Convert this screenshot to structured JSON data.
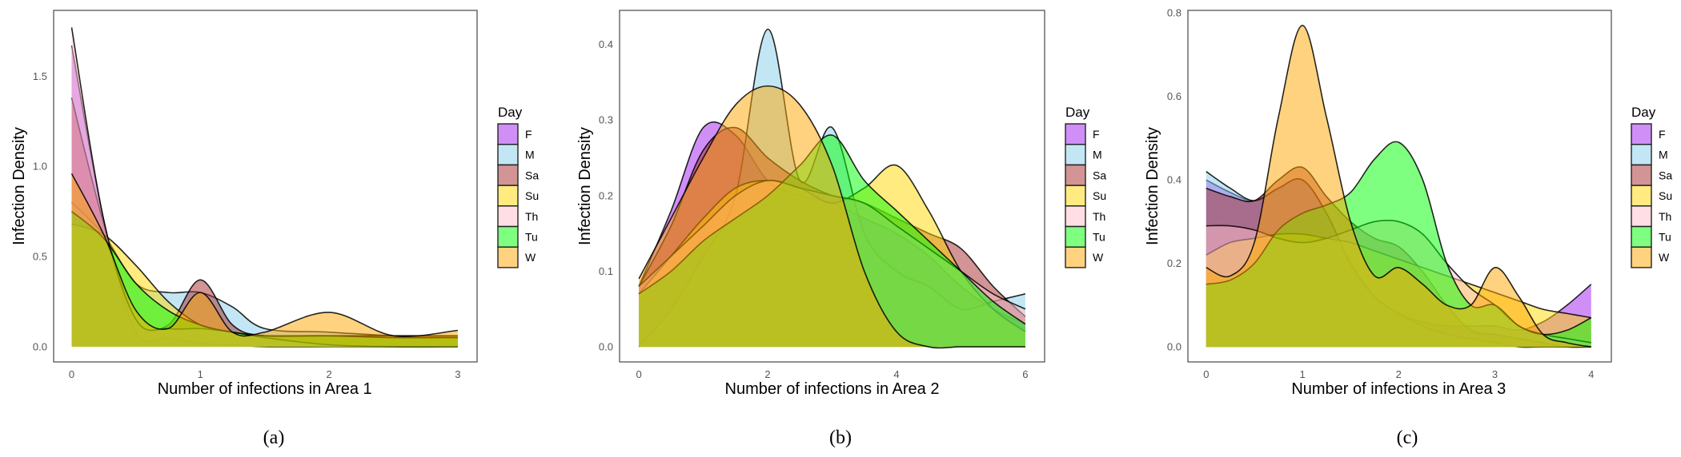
{
  "chart_data": [
    {
      "type": "area",
      "caption": "(a)",
      "xlabel": "Number of infections in Area 1",
      "ylabel": "Infection Density",
      "xlim": [
        -0.14,
        3.15
      ],
      "ylim": [
        -0.085,
        1.865
      ],
      "xticks": [
        0,
        1,
        2,
        3
      ],
      "xtick_labels": [
        "0",
        "1",
        "2",
        "3"
      ],
      "yticks": [
        0,
        0.5,
        1,
        1.5
      ],
      "ytick_labels": [
        "0.0",
        "0.5",
        "1.0",
        "1.5"
      ],
      "grid": false,
      "legend": {
        "title": "Day",
        "placement": "right"
      },
      "x": [
        0,
        0.25,
        0.5,
        0.75,
        1,
        1.25,
        1.5,
        2,
        2.5,
        3
      ],
      "series": [
        {
          "name": "F",
          "values": [
            1.67,
            0.7,
            0.08,
            0.05,
            0.02,
            0.01,
            0.0,
            0.0,
            0.0,
            0.0
          ]
        },
        {
          "name": "M",
          "values": [
            0.8,
            0.62,
            0.35,
            0.3,
            0.3,
            0.22,
            0.1,
            0.08,
            0.06,
            0.05
          ]
        },
        {
          "name": "Sa",
          "values": [
            1.38,
            0.68,
            0.15,
            0.12,
            0.37,
            0.12,
            0.06,
            0.06,
            0.06,
            0.06
          ]
        },
        {
          "name": "Su",
          "values": [
            0.68,
            0.62,
            0.45,
            0.25,
            0.12,
            0.08,
            0.06,
            0.06,
            0.06,
            0.06
          ]
        },
        {
          "name": "Th",
          "values": [
            1.77,
            0.7,
            0.15,
            0.1,
            0.1,
            0.08,
            0.05,
            0.01,
            0.0,
            0.0
          ]
        },
        {
          "name": "Tu",
          "values": [
            0.75,
            0.6,
            0.35,
            0.2,
            0.12,
            0.08,
            0.06,
            0.06,
            0.05,
            0.05
          ]
        },
        {
          "name": "W",
          "values": [
            0.96,
            0.62,
            0.2,
            0.1,
            0.3,
            0.08,
            0.08,
            0.19,
            0.06,
            0.09
          ]
        }
      ]
    },
    {
      "type": "area",
      "caption": "(b)",
      "xlabel": "Number of infections in Area 2",
      "ylabel": "Infection Density",
      "xlim": [
        -0.3,
        6.3
      ],
      "ylim": [
        -0.02,
        0.445
      ],
      "xticks": [
        0,
        2,
        4,
        6
      ],
      "xtick_labels": [
        "0",
        "2",
        "4",
        "6"
      ],
      "yticks": [
        0,
        0.1,
        0.2,
        0.3,
        0.4
      ],
      "ytick_labels": [
        "0.0",
        "0.1",
        "0.2",
        "0.3",
        "0.4"
      ],
      "grid": false,
      "legend": {
        "title": "Day",
        "placement": "right"
      },
      "x": [
        0,
        0.5,
        1,
        1.5,
        2,
        2.5,
        3,
        3.5,
        4,
        4.5,
        5,
        5.5,
        6
      ],
      "series": [
        {
          "name": "F",
          "values": [
            0.08,
            0.18,
            0.29,
            0.28,
            0.22,
            0.2,
            0.19,
            0.17,
            0.15,
            0.12,
            0.08,
            0.05,
            0.03
          ]
        },
        {
          "name": "M",
          "values": [
            0.0,
            0.05,
            0.12,
            0.2,
            0.42,
            0.22,
            0.29,
            0.15,
            0.1,
            0.08,
            0.05,
            0.06,
            0.07
          ]
        },
        {
          "name": "Sa",
          "values": [
            0.08,
            0.16,
            0.26,
            0.29,
            0.25,
            0.22,
            0.2,
            0.19,
            0.17,
            0.15,
            0.13,
            0.08,
            0.04
          ]
        },
        {
          "name": "Su",
          "values": [
            0.07,
            0.12,
            0.17,
            0.21,
            0.22,
            0.21,
            0.19,
            0.21,
            0.24,
            0.18,
            0.1,
            0.05,
            0.02
          ]
        },
        {
          "name": "Th",
          "values": [
            0.08,
            0.12,
            0.16,
            0.2,
            0.22,
            0.21,
            0.2,
            0.19,
            0.16,
            0.13,
            0.1,
            0.07,
            0.05
          ]
        },
        {
          "name": "Tu",
          "values": [
            0.07,
            0.1,
            0.14,
            0.17,
            0.2,
            0.24,
            0.28,
            0.22,
            0.18,
            0.14,
            0.1,
            0.06,
            0.03
          ]
        },
        {
          "name": "W",
          "values": [
            0.09,
            0.17,
            0.25,
            0.32,
            0.345,
            0.32,
            0.24,
            0.1,
            0.02,
            0.0,
            0.0,
            0.0,
            0.0
          ]
        }
      ]
    },
    {
      "type": "area",
      "caption": "(c)",
      "xlabel": "Number of infections in Area 3",
      "ylabel": "Infection Density",
      "xlim": [
        -0.19,
        4.21
      ],
      "ylim": [
        -0.036,
        0.806
      ],
      "xticks": [
        0,
        1,
        2,
        3,
        4
      ],
      "xtick_labels": [
        "0",
        "1",
        "2",
        "3",
        "4"
      ],
      "yticks": [
        0,
        0.2,
        0.4,
        0.6,
        0.8
      ],
      "ytick_labels": [
        "0.0",
        "0.2",
        "0.4",
        "0.6",
        "0.8"
      ],
      "grid": false,
      "legend": {
        "title": "Day",
        "placement": "right"
      },
      "x": [
        0,
        0.25,
        0.5,
        0.75,
        1,
        1.25,
        1.5,
        1.75,
        2,
        2.25,
        2.5,
        2.75,
        3,
        3.25,
        3.5,
        3.75,
        4
      ],
      "series": [
        {
          "name": "F",
          "values": [
            0.4,
            0.37,
            0.35,
            0.38,
            0.4,
            0.32,
            0.2,
            0.12,
            0.08,
            0.06,
            0.05,
            0.05,
            0.05,
            0.04,
            0.06,
            0.1,
            0.15
          ]
        },
        {
          "name": "M",
          "values": [
            0.42,
            0.38,
            0.35,
            0.38,
            0.4,
            0.32,
            0.2,
            0.12,
            0.08,
            0.05,
            0.03,
            0.02,
            0.01,
            0.0,
            0.0,
            0.0,
            0.0
          ]
        },
        {
          "name": "Sa",
          "values": [
            0.38,
            0.36,
            0.35,
            0.4,
            0.43,
            0.36,
            0.3,
            0.26,
            0.24,
            0.18,
            0.1,
            0.04,
            0.03,
            0.02,
            0.01,
            0.0,
            0.0
          ]
        },
        {
          "name": "Su",
          "values": [
            0.22,
            0.25,
            0.26,
            0.27,
            0.27,
            0.26,
            0.25,
            0.23,
            0.21,
            0.19,
            0.17,
            0.15,
            0.13,
            0.11,
            0.09,
            0.08,
            0.07
          ]
        },
        {
          "name": "Th",
          "values": [
            0.29,
            0.29,
            0.28,
            0.26,
            0.25,
            0.26,
            0.28,
            0.3,
            0.3,
            0.27,
            0.2,
            0.14,
            0.1,
            0.05,
            0.03,
            0.02,
            0.01
          ]
        },
        {
          "name": "Tu",
          "values": [
            0.15,
            0.16,
            0.2,
            0.28,
            0.32,
            0.34,
            0.37,
            0.45,
            0.49,
            0.4,
            0.2,
            0.1,
            0.1,
            0.05,
            0.03,
            0.04,
            0.07
          ]
        },
        {
          "name": "W",
          "values": [
            0.19,
            0.17,
            0.25,
            0.55,
            0.77,
            0.55,
            0.3,
            0.17,
            0.19,
            0.15,
            0.1,
            0.1,
            0.19,
            0.12,
            0.03,
            0.01,
            0.0
          ]
        }
      ]
    }
  ],
  "colors": {
    "F": "#a020f0",
    "M": "#87ceeb",
    "Sa": "#a52a2a",
    "Su": "#ffd700",
    "Th": "#ffc0cb",
    "Tu": "#00ff00",
    "W": "#ffa500"
  },
  "fill_alpha": 0.5
}
